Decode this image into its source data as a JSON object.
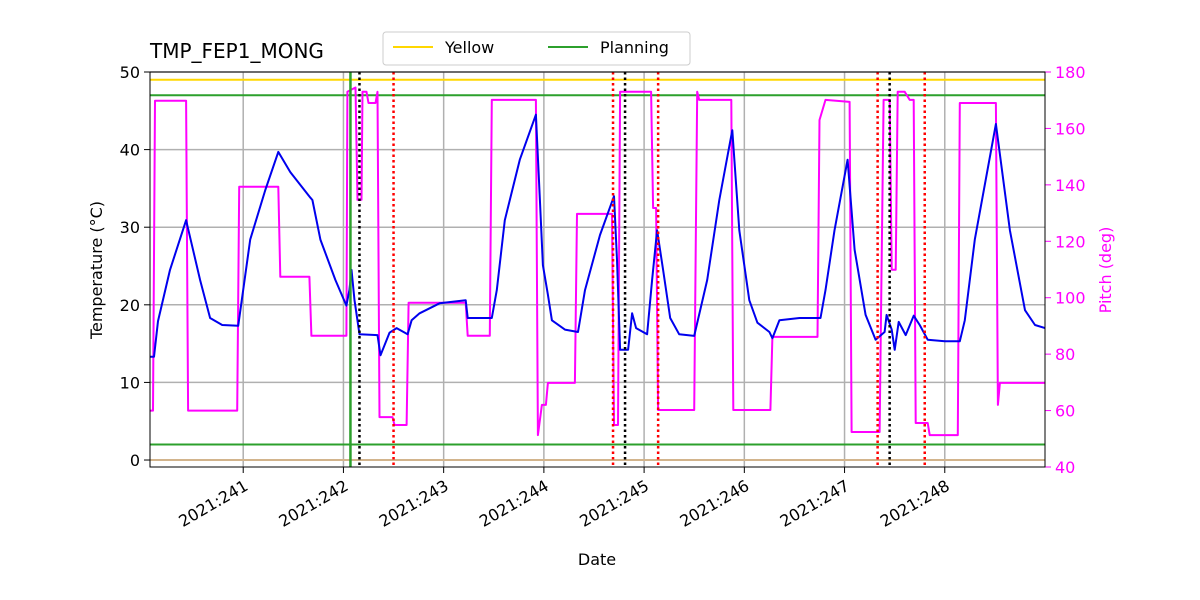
{
  "chart_data": {
    "type": "line",
    "title": "TMP_FEP1_MONG",
    "xlabel": "Date",
    "ylabel": "Temperature (°C)",
    "y2label": "Pitch (deg)",
    "y2color": "#ff00ff",
    "xlim": [
      240.07,
      249.0
    ],
    "xticks": [
      {
        "value": 241,
        "label": "2021:241"
      },
      {
        "value": 242,
        "label": "2021:242"
      },
      {
        "value": 243,
        "label": "2021:243"
      },
      {
        "value": 244,
        "label": "2021:244"
      },
      {
        "value": 245,
        "label": "2021:245"
      },
      {
        "value": 246,
        "label": "2021:246"
      },
      {
        "value": 247,
        "label": "2021:247"
      },
      {
        "value": 248,
        "label": "2021:248"
      }
    ],
    "ylim": [
      -0.9,
      50
    ],
    "yticks": [
      0,
      10,
      20,
      30,
      40,
      50
    ],
    "y2lim": [
      40,
      180
    ],
    "y2ticks": [
      40,
      60,
      80,
      100,
      120,
      140,
      160,
      180
    ],
    "grid": true,
    "legend": "top",
    "limit_lines": [
      {
        "name": "Yellow",
        "color": "#ffd700",
        "values": [
          49
        ]
      },
      {
        "name": "Planning",
        "color": "#2ca02c",
        "values": [
          47,
          2
        ]
      },
      {
        "color": "#d2b48c",
        "values": [
          0
        ]
      }
    ],
    "vlines": [
      {
        "color": "#2ca02c",
        "style": "solid",
        "x": [
          242.07
        ]
      },
      {
        "color": "#000000",
        "style": "dotted",
        "x": [
          242.16,
          244.81,
          247.45
        ]
      },
      {
        "color": "#ff0000",
        "style": "dotted",
        "x": [
          242.5,
          244.69,
          245.14,
          247.33,
          247.8
        ]
      }
    ],
    "series": [
      {
        "color": "#ff00ff",
        "axis": "y2",
        "x": [
          240.07,
          240.1,
          240.12,
          240.43,
          240.45,
          240.94,
          240.96,
          241.35,
          241.37,
          241.66,
          241.68,
          242.03,
          242.04,
          242.12,
          242.14,
          242.18,
          242.19,
          242.23,
          242.25,
          242.32,
          242.34,
          242.36,
          242.49,
          242.51,
          242.63,
          242.65,
          243.22,
          243.24,
          243.46,
          243.48,
          243.92,
          243.94,
          243.98,
          244.02,
          244.04,
          244.31,
          244.33,
          244.68,
          244.7,
          244.74,
          244.76,
          245.07,
          245.09,
          245.12,
          245.14,
          245.5,
          245.53,
          245.55,
          245.87,
          245.89,
          246.26,
          246.28,
          246.73,
          246.75,
          246.81,
          247.05,
          247.07,
          247.35,
          247.39,
          247.45,
          247.47,
          247.51,
          247.53,
          247.6,
          247.65,
          247.69,
          247.71,
          247.83,
          247.85,
          248.13,
          248.15,
          248.51,
          248.53,
          248.55,
          249.0
        ],
        "values": [
          60,
          60,
          169.8,
          169.8,
          60,
          60,
          139.3,
          139.3,
          107.4,
          107.4,
          86.5,
          86.5,
          173,
          174.5,
          134.7,
          134.7,
          173,
          173,
          169,
          169,
          173,
          57.7,
          57.7,
          54.9,
          54.9,
          98.2,
          98.2,
          86.5,
          86.5,
          170.1,
          170.1,
          51.3,
          62,
          62,
          69.8,
          69.8,
          129.7,
          129.7,
          54.9,
          54.9,
          173,
          173,
          131.8,
          131.8,
          60.2,
          60.2,
          173,
          170.1,
          170.1,
          60.2,
          60.2,
          86.1,
          86.1,
          163,
          170.1,
          169.4,
          52.4,
          52.4,
          170.1,
          170.1,
          109.9,
          109.9,
          173,
          173,
          170.1,
          170.1,
          55.6,
          55.6,
          51.3,
          51.3,
          169,
          169,
          62,
          69.8,
          69.8
        ]
      },
      {
        "color": "#0000ee",
        "x": [
          240.07,
          240.11,
          240.15,
          240.27,
          240.43,
          240.57,
          240.67,
          240.79,
          240.95,
          241.07,
          241.22,
          241.35,
          241.47,
          241.67,
          241.69,
          241.77,
          241.92,
          242.03,
          242.06,
          242.08,
          242.11,
          242.16,
          242.34,
          242.37,
          242.46,
          242.53,
          242.64,
          242.68,
          242.76,
          242.96,
          243.22,
          243.24,
          243.48,
          243.53,
          243.61,
          243.76,
          243.92,
          243.96,
          243.99,
          244.04,
          244.08,
          244.21,
          244.34,
          244.41,
          244.56,
          244.7,
          244.73,
          244.76,
          244.84,
          244.88,
          244.92,
          245.03,
          245.08,
          245.13,
          245.19,
          245.26,
          245.35,
          245.5,
          245.63,
          245.75,
          245.88,
          245.95,
          246.05,
          246.13,
          246.25,
          246.28,
          246.35,
          246.55,
          246.76,
          246.81,
          246.9,
          247.03,
          247.1,
          247.21,
          247.31,
          247.4,
          247.42,
          247.47,
          247.5,
          247.54,
          247.61,
          247.69,
          247.75,
          247.83,
          248.0,
          248.15,
          248.2,
          248.3,
          248.51,
          248.65,
          248.8,
          248.9,
          249.0
        ],
        "values": [
          13.3,
          13.3,
          17.9,
          24.5,
          30.9,
          23.2,
          18.3,
          17.4,
          17.3,
          28.4,
          34.8,
          39.7,
          37.1,
          33.8,
          33.5,
          28.4,
          23.2,
          19.9,
          21.9,
          24.5,
          20.6,
          16.2,
          16.1,
          13.5,
          16.4,
          17.0,
          16.2,
          18.0,
          18.9,
          20.2,
          20.6,
          18.3,
          18.3,
          21.9,
          30.9,
          38.7,
          44.5,
          33.5,
          25.1,
          21.3,
          18.0,
          16.8,
          16.5,
          21.9,
          29.0,
          34.0,
          25.8,
          14.2,
          14.2,
          18.9,
          17.0,
          16.2,
          23.2,
          29.6,
          24.5,
          18.3,
          16.2,
          16.0,
          23.2,
          33.5,
          42.5,
          29.6,
          20.6,
          17.7,
          16.5,
          15.7,
          18.0,
          18.3,
          18.3,
          21.9,
          29.6,
          38.7,
          27.1,
          18.7,
          15.5,
          16.5,
          18.7,
          16.8,
          14.2,
          17.8,
          16.1,
          18.6,
          17.4,
          15.5,
          15.3,
          15.3,
          18.0,
          28.4,
          43.3,
          29.6,
          19.3,
          17.4,
          17.0
        ]
      }
    ]
  }
}
